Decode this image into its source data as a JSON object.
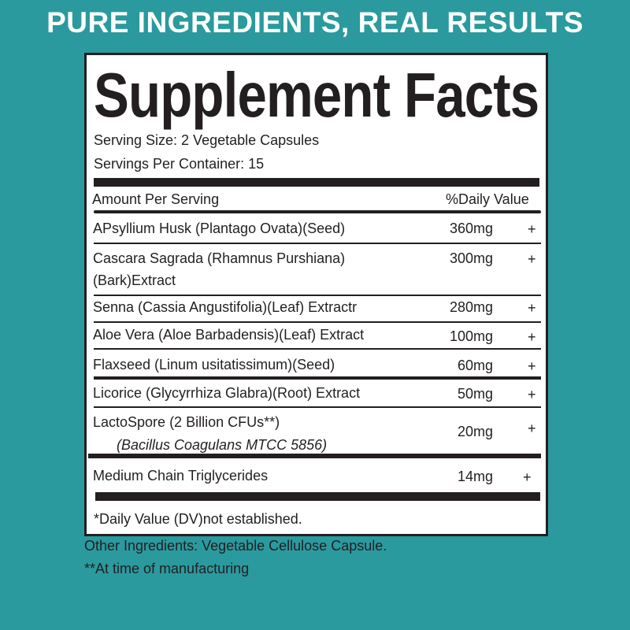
{
  "headline": "PURE INGREDIENTS, REAL RESULTS",
  "label": {
    "title": "Supplement Facts",
    "serving_size": "Serving Size: 2  Vegetable Capsules",
    "servings_per_container": "Servings Per Container: 15",
    "header_left": "Amount Per Serving",
    "header_right": "%Daily Value",
    "rows": [
      {
        "name": "APsyllium Husk (Plantago Ovata)(Seed)",
        "amount": "360mg",
        "dv": "+"
      },
      {
        "name": "Cascara Sagrada (Rhamnus Purshiana)",
        "name2": "(Bark)Extract",
        "amount": "300mg",
        "dv": "+"
      },
      {
        "name": "Senna (Cassia Angustifolia)(Leaf) Extractr",
        "amount": "280mg",
        "dv": "+"
      },
      {
        "name": "Aloe Vera (Aloe Barbadensis)(Leaf) Extract",
        "amount": "100mg",
        "dv": "+"
      },
      {
        "name": "Flaxseed (Linum usitatissimum)(Seed)",
        "amount": "60mg",
        "dv": "+"
      },
      {
        "name": "Licorice (Glycyrrhiza Glabra)(Root) Extract",
        "amount": "50mg",
        "dv": "+"
      },
      {
        "name": "LactoSpore (2 Billion CFUs**)",
        "name2": "(Bacillus Coagulans MTCC 5856)",
        "amount": "20mg",
        "dv": "+"
      },
      {
        "name": "Medium Chain Triglycerides",
        "amount": "14mg",
        "dv": "+"
      }
    ],
    "footnote": "*Daily Value (DV)not established."
  },
  "other_ingredients": "Other Ingredients: Vegetable Cellulose  Capsule.",
  "manufacturing_note": "**At time of manufacturing"
}
